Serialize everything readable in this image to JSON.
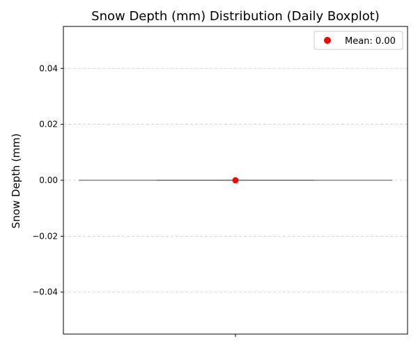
{
  "chart_data": {
    "type": "box",
    "title": "Snow Depth (mm) Distribution (Daily Boxplot)",
    "xlabel": "",
    "ylabel": "Snow Depth (mm)",
    "ylim": [
      -0.055,
      0.055
    ],
    "yticks": [
      -0.04,
      -0.02,
      0.0,
      0.02,
      0.04
    ],
    "ytick_labels": [
      "−0.04",
      "−0.02",
      "0.00",
      "0.02",
      "0.04"
    ],
    "grid": {
      "y": true,
      "x": false,
      "style": "dashed"
    },
    "boxes": [
      {
        "min": 0.0,
        "q1": 0.0,
        "median": 0.0,
        "q3": 0.0,
        "max": 0.0,
        "mean": 0.0
      }
    ],
    "legend": {
      "position": "top-right",
      "entries": [
        {
          "label": "Mean: 0.00",
          "marker": "circle",
          "color": "#ff0000"
        }
      ]
    },
    "colors": {
      "box": "#808080",
      "mean": "#ff0000",
      "grid": "#cccccc"
    }
  }
}
